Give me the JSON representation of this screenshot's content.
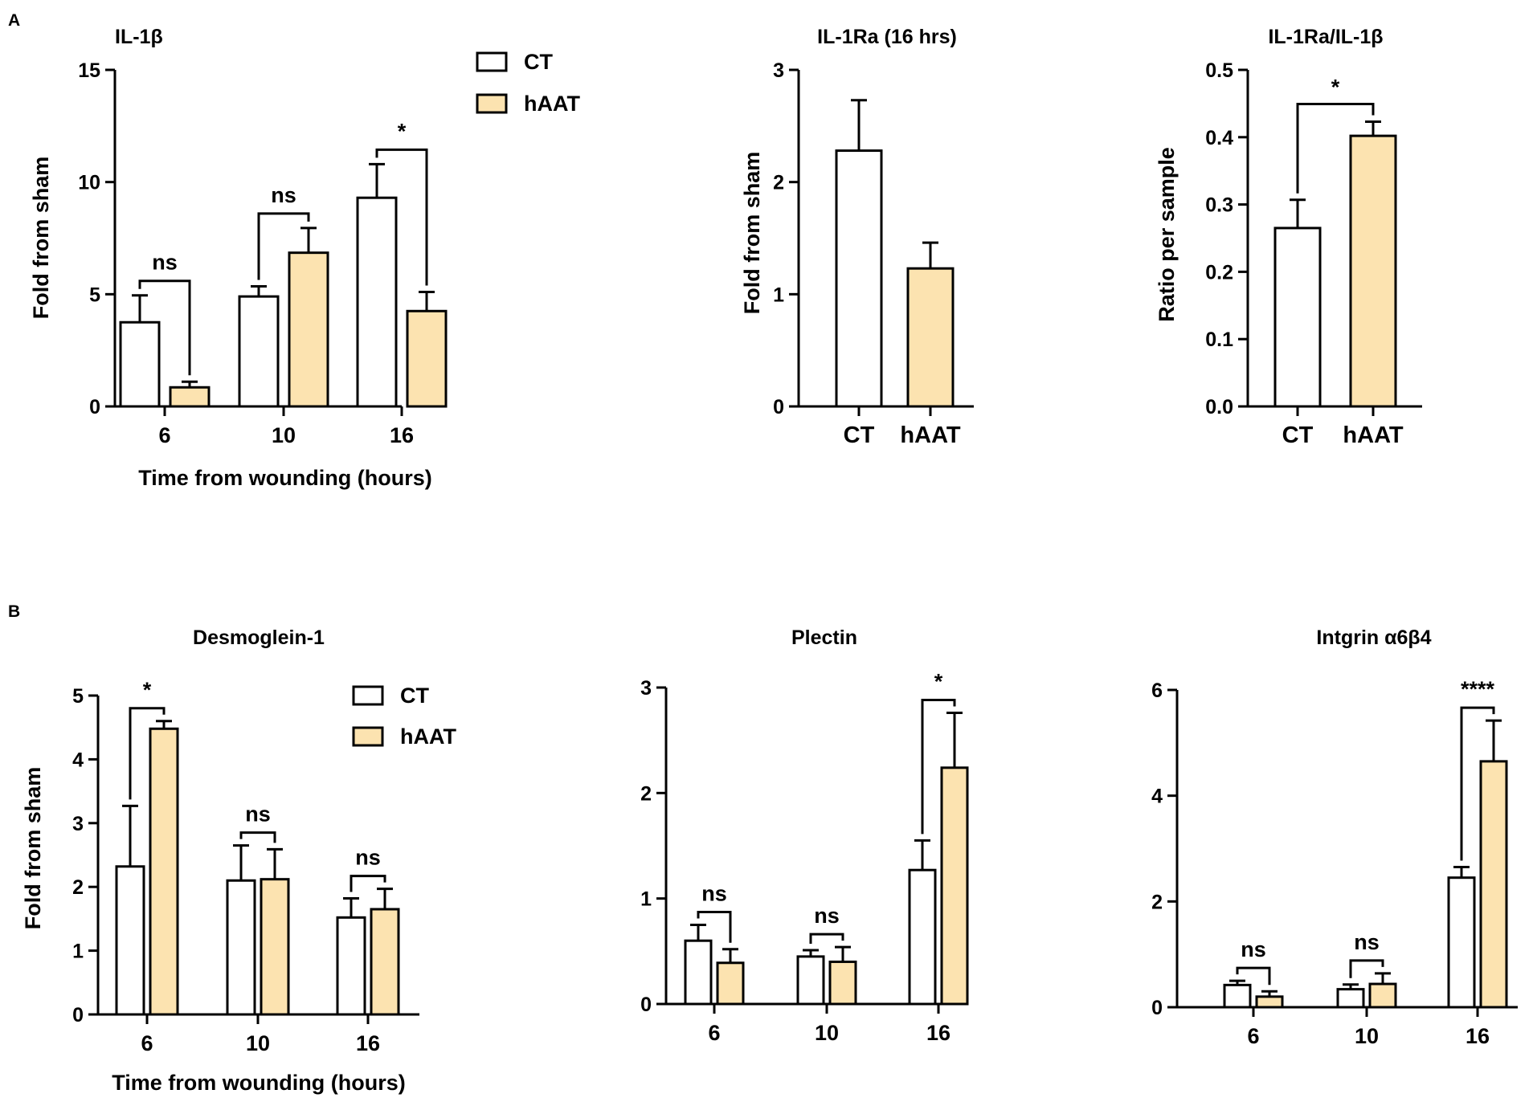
{
  "figure": {
    "panel_labels": [
      "A",
      "B"
    ],
    "colors": {
      "ct_fill": "#ffffff",
      "haat_fill": "#fce3b0",
      "stroke": "#000000"
    }
  },
  "chart_data": [
    {
      "id": "il1b",
      "type": "bar",
      "title": "IL-1β",
      "xlabel": "Time from wounding (hours)",
      "ylabel": "Fold from sham",
      "categories": [
        "6",
        "10",
        "16"
      ],
      "yticks": [
        "0",
        "5",
        "10",
        "15"
      ],
      "ylim": [
        0,
        15
      ],
      "series": [
        {
          "name": "CT",
          "values": [
            3.75,
            4.9,
            9.3
          ],
          "errors": [
            1.2,
            0.45,
            1.5
          ]
        },
        {
          "name": "hAAT",
          "values": [
            0.85,
            6.85,
            4.25
          ],
          "errors": [
            0.25,
            1.1,
            0.85
          ]
        }
      ],
      "significance": [
        "ns",
        "ns",
        "*"
      ],
      "legend": [
        "CT",
        "hAAT"
      ]
    },
    {
      "id": "il1ra",
      "type": "bar",
      "title": "IL-1Ra (16 hrs)",
      "xlabel": "",
      "ylabel": "Fold from sham",
      "categories": [
        "CT",
        "hAAT"
      ],
      "yticks": [
        "0",
        "1",
        "2",
        "3"
      ],
      "ylim": [
        0,
        3
      ],
      "values": [
        2.28,
        1.23
      ],
      "errors": [
        0.45,
        0.23
      ]
    },
    {
      "id": "ratio",
      "type": "bar",
      "title": "IL-1Ra/IL-1β",
      "xlabel": "",
      "ylabel": "Ratio per sample",
      "categories": [
        "CT",
        "hAAT"
      ],
      "yticks": [
        "0.0",
        "0.1",
        "0.2",
        "0.3",
        "0.4",
        "0.5"
      ],
      "ylim": [
        0,
        0.5
      ],
      "values": [
        0.265,
        0.402
      ],
      "errors": [
        0.042,
        0.021
      ],
      "significance": [
        "*"
      ]
    },
    {
      "id": "dsg1",
      "type": "bar",
      "title": "Desmoglein-1",
      "xlabel": "Time from wounding (hours)",
      "ylabel": "Fold from sham",
      "categories": [
        "6",
        "10",
        "16"
      ],
      "yticks": [
        "0",
        "1",
        "2",
        "3",
        "4",
        "5"
      ],
      "ylim": [
        0,
        5
      ],
      "series": [
        {
          "name": "CT",
          "values": [
            2.32,
            2.1,
            1.52
          ],
          "errors": [
            0.95,
            0.55,
            0.3
          ]
        },
        {
          "name": "hAAT",
          "values": [
            4.48,
            2.12,
            1.65
          ],
          "errors": [
            0.12,
            0.47,
            0.32
          ]
        }
      ],
      "significance": [
        "*",
        "ns",
        "ns"
      ],
      "legend": [
        "CT",
        "hAAT"
      ]
    },
    {
      "id": "plectin",
      "type": "bar",
      "title": "Plectin",
      "xlabel": "",
      "ylabel": "",
      "categories": [
        "6",
        "10",
        "16"
      ],
      "yticks": [
        "0",
        "1",
        "2",
        "3"
      ],
      "ylim": [
        0,
        3
      ],
      "series": [
        {
          "name": "CT",
          "values": [
            0.6,
            0.45,
            1.27
          ],
          "errors": [
            0.15,
            0.06,
            0.28
          ]
        },
        {
          "name": "hAAT",
          "values": [
            0.39,
            0.4,
            2.24
          ],
          "errors": [
            0.13,
            0.14,
            0.52
          ]
        }
      ],
      "significance": [
        "ns",
        "ns",
        "*"
      ]
    },
    {
      "id": "itga6b4",
      "type": "bar",
      "title": "Intgrin α6β4",
      "xlabel": "",
      "ylabel": "",
      "categories": [
        "6",
        "10",
        "16"
      ],
      "yticks": [
        "0",
        "2",
        "4",
        "6"
      ],
      "ylim": [
        0,
        6
      ],
      "series": [
        {
          "name": "CT",
          "values": [
            0.42,
            0.34,
            2.45
          ],
          "errors": [
            0.08,
            0.09,
            0.2
          ]
        },
        {
          "name": "hAAT",
          "values": [
            0.2,
            0.44,
            4.65
          ],
          "errors": [
            0.1,
            0.2,
            0.77
          ]
        }
      ],
      "significance": [
        "ns",
        "ns",
        "****"
      ]
    }
  ]
}
